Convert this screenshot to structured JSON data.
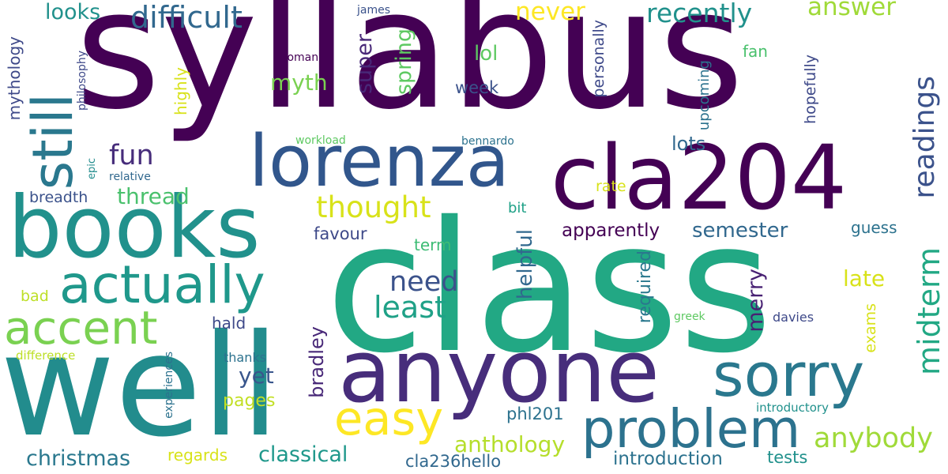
{
  "words": [
    {
      "text": "syllabus",
      "color": "#440154",
      "vertical": false
    },
    {
      "text": "class",
      "color": "#22a884",
      "vertical": false
    },
    {
      "text": "well",
      "color": "#228c8d",
      "vertical": false
    },
    {
      "text": "anyone",
      "color": "#472d7b",
      "vertical": false
    },
    {
      "text": "books",
      "color": "#21918c",
      "vertical": false
    },
    {
      "text": "cla204",
      "color": "#440154",
      "vertical": false
    },
    {
      "text": "lorenza",
      "color": "#31568c",
      "vertical": false
    },
    {
      "text": "problem",
      "color": "#2c728e",
      "vertical": false
    },
    {
      "text": "sorry",
      "color": "#2a788e",
      "vertical": false
    },
    {
      "text": "actually",
      "color": "#1f988b",
      "vertical": false
    },
    {
      "text": "still",
      "color": "#2a788e",
      "vertical": true
    },
    {
      "text": "accent",
      "color": "#7ad151",
      "vertical": false
    },
    {
      "text": "easy",
      "color": "#fde725",
      "vertical": false
    },
    {
      "text": "difficult",
      "color": "#31688e",
      "vertical": false
    },
    {
      "text": "need",
      "color": "#3b528b",
      "vertical": false
    },
    {
      "text": "least",
      "color": "#1fa187",
      "vertical": false
    },
    {
      "text": "anybody",
      "color": "#a0da39",
      "vertical": false
    },
    {
      "text": "midterm",
      "color": "#22a884",
      "vertical": true
    },
    {
      "text": "readings",
      "color": "#3b528b",
      "vertical": true
    },
    {
      "text": "thought",
      "color": "#d8e219",
      "vertical": false
    },
    {
      "text": "recently",
      "color": "#21918c",
      "vertical": false
    },
    {
      "text": "never",
      "color": "#fde725",
      "vertical": false
    },
    {
      "text": "answer",
      "color": "#a0da39",
      "vertical": false
    },
    {
      "text": "fun",
      "color": "#472d7b",
      "vertical": false
    },
    {
      "text": "anthology",
      "color": "#b5de2b",
      "vertical": false
    },
    {
      "text": "christmas",
      "color": "#2a788e",
      "vertical": false
    },
    {
      "text": "classical",
      "color": "#1f988b",
      "vertical": false
    },
    {
      "text": "thread",
      "color": "#4ac16d",
      "vertical": false
    },
    {
      "text": "myth",
      "color": "#7ad151",
      "vertical": false
    },
    {
      "text": "yet",
      "color": "#39568c",
      "vertical": false
    },
    {
      "text": "merry",
      "color": "#482173",
      "vertical": true
    },
    {
      "text": "late",
      "color": "#d8e219",
      "vertical": false
    },
    {
      "text": "semester",
      "color": "#31688e",
      "vertical": false
    },
    {
      "text": "lots",
      "color": "#31688e",
      "vertical": false
    },
    {
      "text": "apparently",
      "color": "#440154",
      "vertical": false
    },
    {
      "text": "helpful",
      "color": "#31688e",
      "vertical": true
    },
    {
      "text": "looks",
      "color": "#21918c",
      "vertical": false
    },
    {
      "text": "super",
      "color": "#482878",
      "vertical": true
    },
    {
      "text": "spring",
      "color": "#5ec962",
      "vertical": true
    },
    {
      "text": "lol",
      "color": "#5ec962",
      "vertical": false
    },
    {
      "text": "pages",
      "color": "#c2df23",
      "vertical": false
    },
    {
      "text": "favour",
      "color": "#3e4989",
      "vertical": false
    },
    {
      "text": "hald",
      "color": "#3e4989",
      "vertical": false
    },
    {
      "text": "tests",
      "color": "#21918c",
      "vertical": false
    },
    {
      "text": "introduction",
      "color": "#2c728e",
      "vertical": false
    },
    {
      "text": "cla236hello",
      "color": "#31688e",
      "vertical": false
    },
    {
      "text": "regards",
      "color": "#d8e219",
      "vertical": false
    },
    {
      "text": "bradley",
      "color": "#482878",
      "vertical": true
    },
    {
      "text": "required",
      "color": "#2a788e",
      "vertical": true
    },
    {
      "text": "exams",
      "color": "#d8e219",
      "vertical": true
    },
    {
      "text": "phl201",
      "color": "#2c728e",
      "vertical": false
    },
    {
      "text": "guess",
      "color": "#2c728e",
      "vertical": false
    },
    {
      "text": "term",
      "color": "#3dbc74",
      "vertical": false
    },
    {
      "text": "week",
      "color": "#3b528b",
      "vertical": false
    },
    {
      "text": "rate",
      "color": "#d8e219",
      "vertical": false
    },
    {
      "text": "mythology",
      "color": "#3e4989",
      "vertical": true
    },
    {
      "text": "highly",
      "color": "#d8e219",
      "vertical": true
    },
    {
      "text": "breadth",
      "color": "#3b528b",
      "vertical": false
    },
    {
      "text": "bad",
      "color": "#bddf26",
      "vertical": false
    },
    {
      "text": "hopefully",
      "color": "#3e4989",
      "vertical": true
    },
    {
      "text": "personally",
      "color": "#3e4989",
      "vertical": true
    },
    {
      "text": "upcoming",
      "color": "#2c728e",
      "vertical": true
    },
    {
      "text": "fan",
      "color": "#4ac16d",
      "vertical": false
    },
    {
      "text": "bit",
      "color": "#1fa187",
      "vertical": false
    },
    {
      "text": "thanks",
      "color": "#2c728e",
      "vertical": false
    },
    {
      "text": "davies",
      "color": "#3e4989",
      "vertical": false
    },
    {
      "text": "difference",
      "color": "#bddf26",
      "vertical": false
    },
    {
      "text": "experiences",
      "color": "#2c728e",
      "vertical": true
    },
    {
      "text": "introductory",
      "color": "#21918c",
      "vertical": false
    },
    {
      "text": "philosophy",
      "color": "#3e4989",
      "vertical": true
    },
    {
      "text": "epic",
      "color": "#228c8d",
      "vertical": true
    },
    {
      "text": "relative",
      "color": "#31688e",
      "vertical": false
    },
    {
      "text": "workload",
      "color": "#5ec962",
      "vertical": false
    },
    {
      "text": "bennardo",
      "color": "#2c728e",
      "vertical": false
    },
    {
      "text": "james",
      "color": "#3b528b",
      "vertical": false
    },
    {
      "text": "roman",
      "color": "#440154",
      "vertical": false
    },
    {
      "text": "greek",
      "color": "#5ec962",
      "vertical": false
    }
  ]
}
